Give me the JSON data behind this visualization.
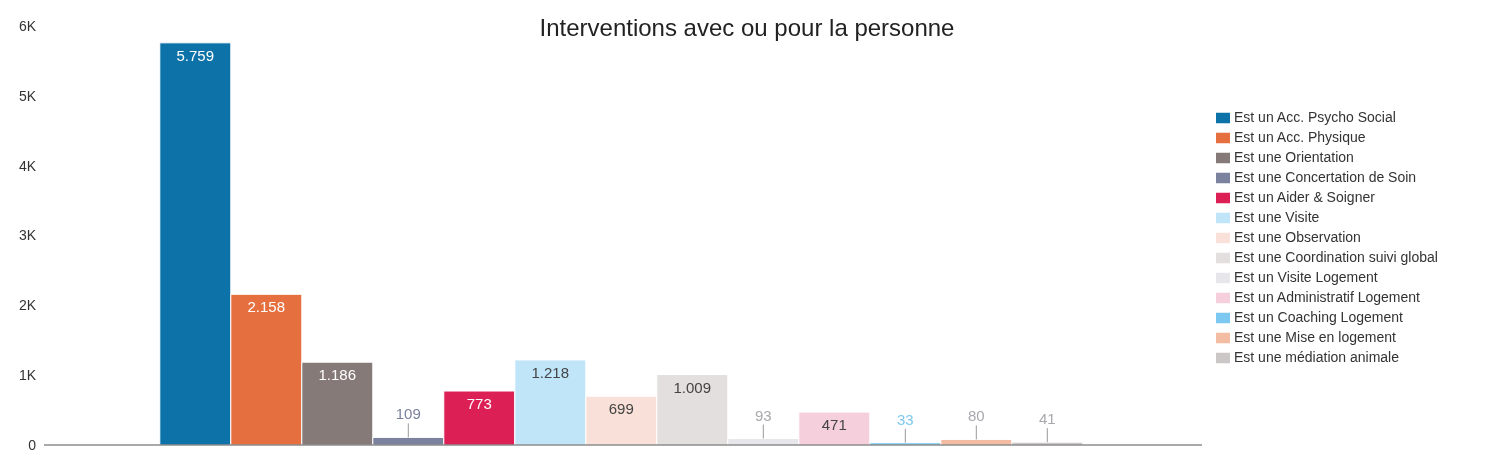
{
  "chart_data": {
    "type": "bar",
    "title": "Interventions avec ou pour la personne",
    "categories": [
      null
    ],
    "ylim": [
      0,
      6000
    ],
    "yticks": [
      {
        "value": 0,
        "label": "0"
      },
      {
        "value": 1000,
        "label": "1K"
      },
      {
        "value": 2000,
        "label": "2K"
      },
      {
        "value": 3000,
        "label": "3K"
      },
      {
        "value": 4000,
        "label": "4K"
      },
      {
        "value": 5000,
        "label": "5K"
      },
      {
        "value": 6000,
        "label": "6K"
      }
    ],
    "grid": false,
    "legend": "right",
    "series": [
      {
        "name": "Est un Acc. Psycho Social",
        "color": "#0d72a8",
        "values": [
          5759
        ],
        "value_labels": [
          "5.759"
        ]
      },
      {
        "name": "Est un Acc. Physique",
        "color": "#e56f3e",
        "values": [
          2158
        ],
        "value_labels": [
          "2.158"
        ]
      },
      {
        "name": "Est une Orientation",
        "color": "#857a78",
        "values": [
          1186
        ],
        "value_labels": [
          "1.186"
        ]
      },
      {
        "name": "Est une Concertation de Soin",
        "color": "#7b829e",
        "values": [
          109
        ],
        "value_labels": [
          "109"
        ]
      },
      {
        "name": "Est un Aider & Soigner",
        "color": "#dc1f55",
        "values": [
          773
        ],
        "value_labels": [
          "773"
        ]
      },
      {
        "name": "Est une Visite",
        "color": "#c0e5f8",
        "values": [
          1218
        ],
        "value_labels": [
          "1.218"
        ]
      },
      {
        "name": "Est une Observation",
        "color": "#f9e0d8",
        "values": [
          699
        ],
        "value_labels": [
          "699"
        ]
      },
      {
        "name": "Est une Coordination suivi global",
        "color": "#e3dfdf",
        "values": [
          1009
        ],
        "value_labels": [
          "1.009"
        ]
      },
      {
        "name": "Est un Visite Logement",
        "color": "#e6e6eb",
        "values": [
          93
        ],
        "value_labels": [
          "93"
        ]
      },
      {
        "name": "Est un Administratif Logement",
        "color": "#f5d0dc",
        "values": [
          471
        ],
        "value_labels": [
          "471"
        ]
      },
      {
        "name": "Est un Coaching Logement",
        "color": "#7cc8f0",
        "values": [
          33
        ],
        "value_labels": [
          "33"
        ]
      },
      {
        "name": "Est une Mise en logement",
        "color": "#f4bca3",
        "values": [
          80
        ],
        "value_labels": [
          "80"
        ]
      },
      {
        "name": "Est une médiation animale",
        "color": "#cbc7c7",
        "values": [
          41
        ],
        "value_labels": [
          "41"
        ]
      }
    ]
  }
}
